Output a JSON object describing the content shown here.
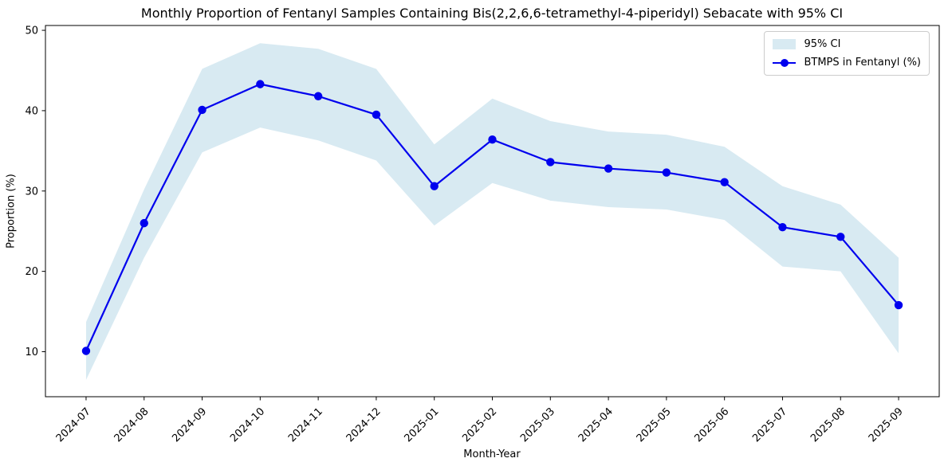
{
  "chart_data": {
    "type": "line",
    "title": "Monthly Proportion of Fentanyl Samples Containing Bis(2,2,6,6-tetramethyl-4-piperidyl) Sebacate with 95% CI",
    "xlabel": "Month-Year",
    "ylabel": "Proportion (%)",
    "categories": [
      "2024-07",
      "2024-08",
      "2024-09",
      "2024-10",
      "2024-11",
      "2024-12",
      "2025-01",
      "2025-02",
      "2025-03",
      "2025-04",
      "2025-05",
      "2025-06",
      "2025-07",
      "2025-08",
      "2025-09"
    ],
    "series": [
      {
        "name": "BTMPS in Fentanyl (%)",
        "values": [
          10.1,
          26.0,
          40.1,
          43.3,
          41.8,
          39.5,
          30.6,
          36.4,
          33.6,
          32.8,
          32.3,
          31.1,
          25.5,
          24.3,
          15.8
        ]
      }
    ],
    "ci_band": {
      "name": "95% CI",
      "lower": [
        6.5,
        21.7,
        34.8,
        37.9,
        36.3,
        33.8,
        25.7,
        31.0,
        28.8,
        28.0,
        27.7,
        26.4,
        20.6,
        20.0,
        9.8
      ],
      "upper": [
        13.7,
        30.2,
        45.2,
        48.4,
        47.7,
        45.2,
        35.8,
        41.5,
        38.7,
        37.4,
        37.0,
        35.5,
        30.6,
        28.3,
        21.7
      ]
    },
    "legend": [
      "95% CI",
      "BTMPS in Fentanyl (%)"
    ],
    "legend_position": "upper right",
    "yticks": [
      10,
      20,
      30,
      40,
      50
    ],
    "ylim": [
      4.4,
      50.6
    ],
    "x_margin": 0.7,
    "grid": false,
    "marker": "circle",
    "colors": {
      "line": "#0000ee",
      "marker": "#0000ee",
      "band": "#d8eaf2",
      "spine": "#000000",
      "text": "#000000",
      "legend_border": "#cccccc"
    }
  }
}
